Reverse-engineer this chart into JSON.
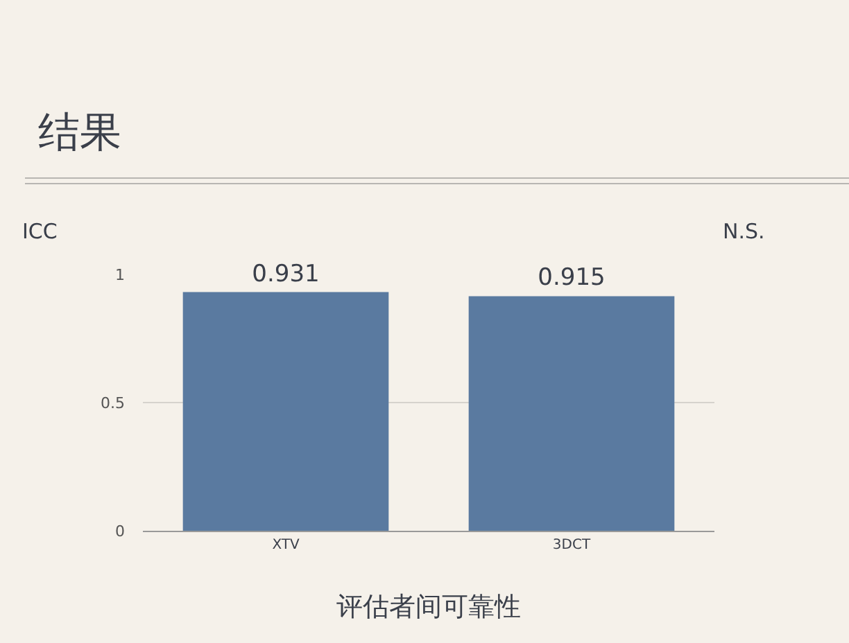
{
  "chart_data": {
    "type": "bar",
    "title": "结果",
    "xlabel": "评估者间可靠性",
    "ylabel": "ICC",
    "categories": [
      "XTV",
      "3DCT"
    ],
    "values": [
      0.931,
      0.915
    ],
    "color": "#5a7aa0",
    "ylim": [
      0,
      1
    ],
    "yticks": [
      0,
      0.5,
      1
    ],
    "grid": "y",
    "data_labels": true,
    "annotations": [
      "N.S."
    ]
  }
}
